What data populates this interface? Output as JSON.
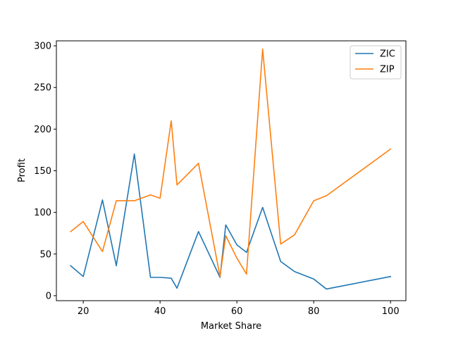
{
  "chart_data": {
    "type": "line",
    "xlabel": "Market Share",
    "ylabel": "Profit",
    "xlim": [
      13,
      104
    ],
    "ylim": [
      -6,
      306
    ],
    "xticks": [
      20,
      40,
      60,
      80,
      100
    ],
    "yticks": [
      0,
      50,
      100,
      150,
      200,
      250,
      300
    ],
    "grid": false,
    "legend_position": "top-right",
    "series": [
      {
        "name": "ZIC",
        "color": "#1f77b4",
        "x": [
          16.7,
          20,
          25,
          28.6,
          33.3,
          37.5,
          40,
          42.9,
          44.4,
          50,
          55.6,
          57.1,
          60,
          62.5,
          66.7,
          71.4,
          75,
          80,
          83.3,
          100
        ],
        "y": [
          36,
          23,
          115,
          36,
          170,
          22,
          22,
          21,
          9,
          77,
          22,
          85,
          61,
          52,
          106,
          41,
          29,
          20,
          8,
          23
        ]
      },
      {
        "name": "ZIP",
        "color": "#ff7f0e",
        "x": [
          16.7,
          20,
          25,
          28.6,
          33.3,
          37.5,
          40,
          42.9,
          44.4,
          50,
          55.6,
          57.1,
          60,
          62.5,
          66.7,
          71.4,
          75,
          80,
          83.3,
          100
        ],
        "y": [
          77,
          89,
          53,
          114,
          114,
          121,
          117,
          210,
          133,
          159,
          23,
          72,
          45,
          26,
          296,
          62,
          73,
          114,
          120,
          176
        ]
      }
    ]
  }
}
